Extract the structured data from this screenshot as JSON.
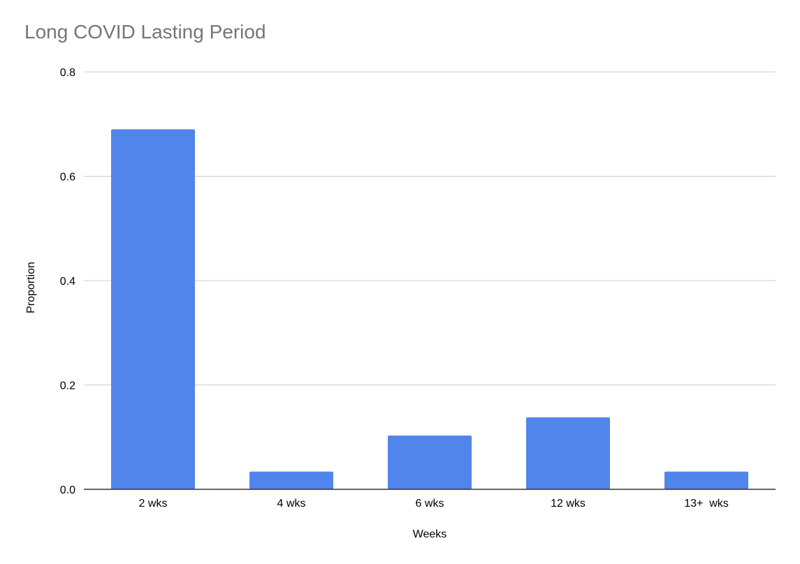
{
  "chart_data": {
    "type": "bar",
    "title": "Long COVID Lasting Period",
    "xlabel": "Weeks",
    "ylabel": "Proportion",
    "categories": [
      "2 wks",
      "4 wks",
      "6 wks",
      "12 wks",
      "13+  wks"
    ],
    "values": [
      0.69,
      0.034,
      0.103,
      0.138,
      0.034
    ],
    "ylim": [
      0,
      0.8
    ],
    "yticks": [
      0,
      0.2,
      0.4,
      0.6,
      0.8
    ],
    "ytick_labels": [
      "0.0",
      "0.2",
      "0.4",
      "0.6",
      "0.8"
    ],
    "grid": true,
    "legend": "none",
    "colors": {
      "bar": "#5185ec",
      "grid": "#cccccc",
      "axis": "#333333",
      "title": "#757575"
    }
  }
}
